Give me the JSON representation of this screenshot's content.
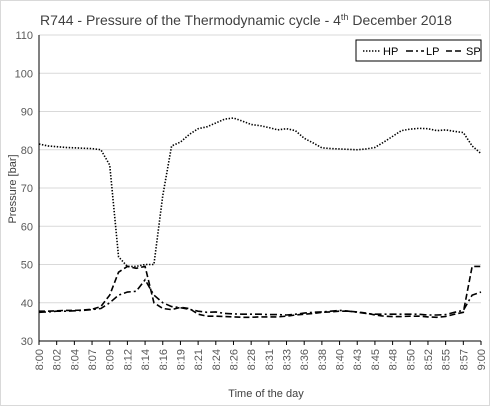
{
  "chart_data": {
    "type": "line",
    "title": "R744 - Pressure of the Thermodynamic cycle - 4",
    "title_sup": "th",
    "title_tail": " December 2018",
    "xlabel": "Time of the day",
    "ylabel": "Pressure [bar]",
    "ylim": [
      30,
      110
    ],
    "yticks": [
      30,
      40,
      50,
      60,
      70,
      80,
      90,
      100,
      110
    ],
    "grid": "horizontal",
    "legend_position": "top-right",
    "x_tick_labels": [
      "8:00",
      "8:02",
      "8:04",
      "8:07",
      "8:09",
      "8:12",
      "8:14",
      "8:16",
      "8:19",
      "8:21",
      "8:24",
      "8:26",
      "8:28",
      "8:31",
      "8:33",
      "8:36",
      "8:38",
      "8:40",
      "8:43",
      "8:45",
      "8:48",
      "8:50",
      "8:52",
      "8:55",
      "8:57",
      "9:00"
    ],
    "series": [
      {
        "name": "HP",
        "dash": "dotted",
        "x": [
          0,
          0.5,
          1,
          1.5,
          2,
          2.5,
          3,
          3.5,
          4,
          4.5,
          5,
          5.5,
          6,
          6.5,
          7,
          7.5,
          8,
          8.5,
          9,
          9.5,
          10,
          10.5,
          11,
          11.5,
          12,
          12.5,
          13,
          13.5,
          14,
          14.5,
          15,
          15.5,
          16,
          16.5,
          17,
          17.5,
          18,
          18.5,
          19,
          19.5,
          20,
          20.5,
          21,
          21.5,
          22,
          22.5,
          23,
          23.5,
          24,
          24.5,
          25
        ],
        "y": [
          81.5,
          81,
          80.8,
          80.6,
          80.5,
          80.4,
          80.3,
          80,
          76,
          52,
          49.5,
          49.5,
          50,
          50,
          68,
          81,
          82,
          84,
          85.5,
          86,
          87,
          88,
          88.3,
          87.5,
          86.6,
          86.3,
          85.8,
          85.2,
          85.5,
          85,
          83,
          81.8,
          80.5,
          80.3,
          80.2,
          80.1,
          80,
          80.2,
          80.6,
          82,
          83.5,
          85,
          85.4,
          85.6,
          85.5,
          85,
          85.2,
          84.8,
          84.5,
          81,
          79
        ]
      },
      {
        "name": "LP",
        "dash": "dashdot",
        "x": [
          0,
          0.5,
          1,
          1.5,
          2,
          2.5,
          3,
          3.5,
          4,
          4.5,
          5,
          5.5,
          6,
          6.5,
          7,
          7.5,
          8,
          8.5,
          9,
          9.5,
          10,
          10.5,
          11,
          11.5,
          12,
          12.5,
          13,
          13.5,
          14,
          14.5,
          15,
          15.5,
          16,
          16.5,
          17,
          17.5,
          18,
          18.5,
          19,
          19.5,
          20,
          20.5,
          21,
          21.5,
          22,
          22.5,
          23,
          23.5,
          24,
          24.5,
          25
        ],
        "y": [
          37.5,
          37.6,
          37.8,
          37.8,
          37.9,
          38,
          38.2,
          38.5,
          40,
          42,
          42.8,
          43,
          46,
          42,
          40,
          39,
          38.7,
          38.3,
          37.8,
          37.5,
          37.6,
          37.2,
          37.1,
          37,
          37,
          37,
          36.9,
          36.9,
          36.8,
          37,
          37.3,
          37.5,
          37.6,
          37.8,
          38,
          37.8,
          37.5,
          37.2,
          37,
          37,
          37,
          37,
          37,
          37,
          36.8,
          36.8,
          36.9,
          37.5,
          38,
          42,
          42.8
        ]
      },
      {
        "name": "SP",
        "dash": "dashed",
        "x": [
          0,
          0.5,
          1,
          1.5,
          2,
          2.5,
          3,
          3.5,
          4,
          4.5,
          5,
          5.5,
          6,
          6.5,
          7,
          7.5,
          8,
          8.5,
          9,
          9.5,
          10,
          10.5,
          11,
          11.5,
          12,
          12.5,
          13,
          13.5,
          14,
          14.5,
          15,
          15.5,
          16,
          16.5,
          17,
          17.5,
          18,
          18.5,
          19,
          19.5,
          20,
          20.5,
          21,
          21.5,
          22,
          22.5,
          23,
          23.5,
          24,
          24.5,
          25
        ],
        "y": [
          37.8,
          37.8,
          37.9,
          38,
          38,
          38.1,
          38.3,
          39,
          42,
          48,
          49.5,
          49,
          49.5,
          40,
          38.5,
          38.2,
          38.8,
          38.5,
          37,
          36.5,
          36.5,
          36.4,
          36.3,
          36.2,
          36.2,
          36.3,
          36.3,
          36.3,
          36.5,
          36.8,
          37,
          37.2,
          37.5,
          37.6,
          37.8,
          37.8,
          37.6,
          37.3,
          36.8,
          36.5,
          36.4,
          36.4,
          36.5,
          36.5,
          36.3,
          36.2,
          36.4,
          37,
          37.5,
          49.5,
          49.5
        ]
      }
    ]
  }
}
